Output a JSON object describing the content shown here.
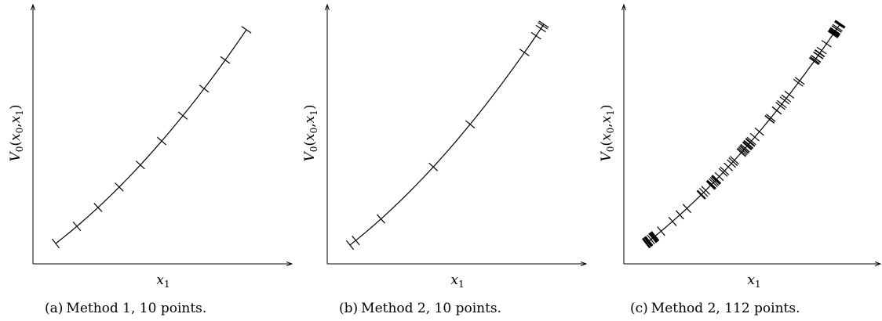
{
  "chart_data": [
    {
      "type": "line",
      "title": "",
      "xlabel": "x",
      "xlabel_sub": "1",
      "ylabel": "V",
      "ylabel_sub": "0",
      "ylabel_args": [
        "x",
        "0",
        "x",
        "1"
      ],
      "xlim": [
        0,
        1
      ],
      "ylim": [
        0,
        1
      ],
      "grid": false,
      "series": [
        {
          "x": [
            0.0,
            0.111,
            0.222,
            0.333,
            0.444,
            0.556,
            0.667,
            0.778,
            0.889,
            1.0
          ]
        }
      ],
      "caption_label": "(a)",
      "caption_text": "Method 1, 10 points."
    },
    {
      "type": "line",
      "title": "",
      "xlabel": "x",
      "xlabel_sub": "1",
      "ylabel": "V",
      "ylabel_sub": "0",
      "ylabel_args": [
        "x",
        "0",
        "x",
        "1"
      ],
      "xlim": [
        0,
        1
      ],
      "ylim": [
        0,
        1
      ],
      "grid": false,
      "series": [
        {
          "x": [
            0.0,
            0.03,
            0.16,
            0.43,
            0.62,
            0.9,
            0.96,
            0.985,
            0.995,
            1.0
          ]
        }
      ],
      "caption_label": "(b)",
      "caption_text": "Method 2, 10 points."
    },
    {
      "type": "line",
      "title": "",
      "xlabel": "x",
      "xlabel_sub": "1",
      "ylabel": "V",
      "ylabel_sub": "0",
      "ylabel_args": [
        "x",
        "0",
        "x",
        "1"
      ],
      "xlim": [
        0,
        1
      ],
      "ylim": [
        0,
        1
      ],
      "grid": false,
      "series": [
        {
          "count": 112
        }
      ],
      "caption_label": "(c)",
      "caption_text": "Method 2, 112 points."
    }
  ]
}
